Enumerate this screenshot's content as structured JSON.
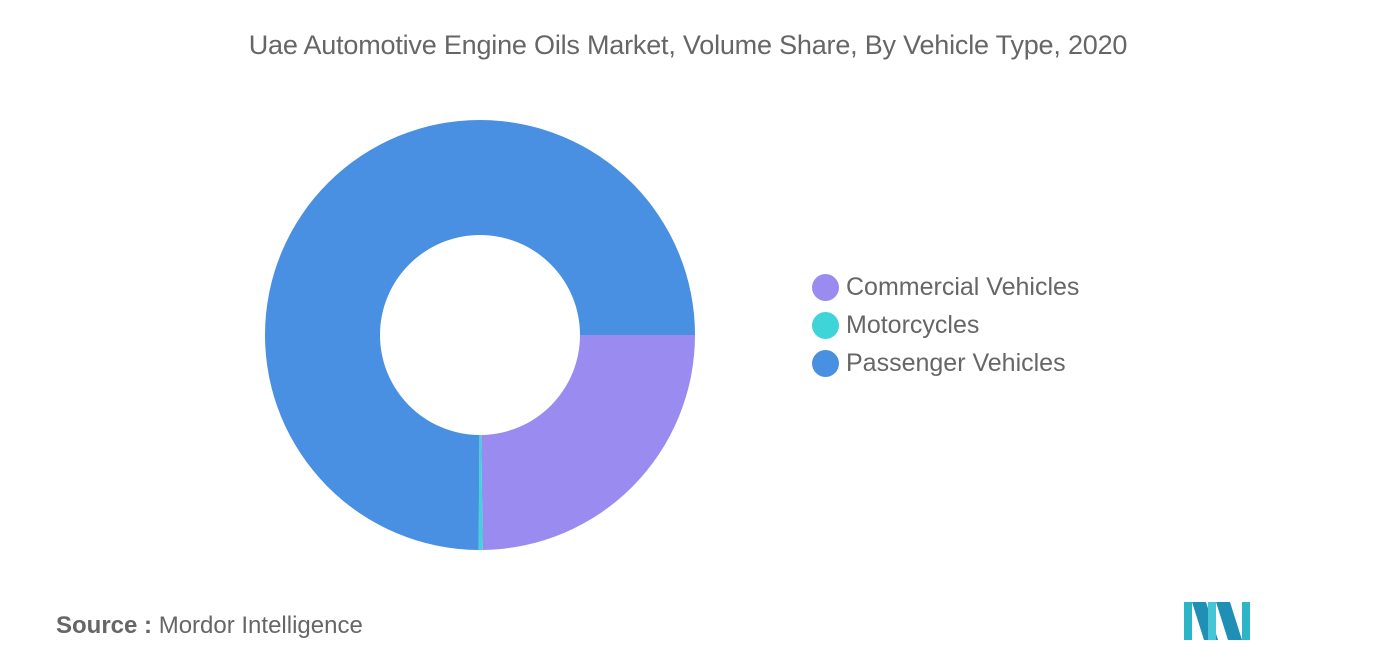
{
  "title": "Uae Automotive Engine Oils Market, Volume Share, By Vehicle Type, 2020",
  "source": {
    "label": "Source :",
    "value": "Mordor Intelligence"
  },
  "logo": "mordor-intelligence-logo",
  "chart_data": {
    "type": "pie",
    "title": "Uae Automotive Engine Oils Market, Volume Share, By Vehicle Type, 2020",
    "series": [
      {
        "name": "Commercial Vehicles",
        "value": 24.8,
        "color": "#9a8bf0"
      },
      {
        "name": "Motorcycles",
        "value": 0.3,
        "color": "#3fd5d8"
      },
      {
        "name": "Passenger Vehicles",
        "value": 74.9,
        "color": "#4a90e2"
      }
    ],
    "legend_position": "right",
    "grid": false
  },
  "legend": [
    {
      "label": "Commercial Vehicles",
      "color": "#9a8bf0"
    },
    {
      "label": "Motorcycles",
      "color": "#3fd5d8"
    },
    {
      "label": "Passenger Vehicles",
      "color": "#4a90e2"
    }
  ]
}
